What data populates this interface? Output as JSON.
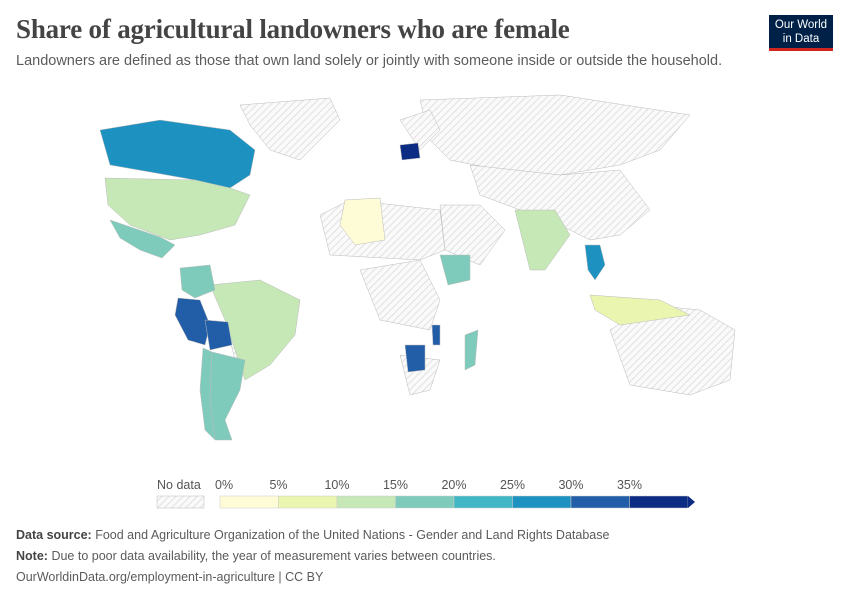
{
  "header": {
    "title": "Share of agricultural landowners who are female",
    "subtitle": "Landowners are defined as those that own land solely or jointly with someone inside or outside the household.",
    "logo": "Our World in Data"
  },
  "chart_data": {
    "type": "map",
    "title": "Share of agricultural landowners who are female",
    "legend": {
      "no_data_label": "No data",
      "ticks": [
        "0%",
        "5%",
        "10%",
        "15%",
        "20%",
        "25%",
        "30%",
        "35%"
      ],
      "bins": [
        {
          "min": 0,
          "max": 5,
          "color": "#fefcd6"
        },
        {
          "min": 5,
          "max": 10,
          "color": "#eaf5b0"
        },
        {
          "min": 10,
          "max": 15,
          "color": "#c6e8b7"
        },
        {
          "min": 15,
          "max": 20,
          "color": "#7ecbbb"
        },
        {
          "min": 20,
          "max": 25,
          "color": "#41b6c4"
        },
        {
          "min": 25,
          "max": 30,
          "color": "#1d91c0"
        },
        {
          "min": 30,
          "max": 35,
          "color": "#225ea8"
        },
        {
          "min": 35,
          "max": null,
          "color": "#0c2c84"
        }
      ],
      "no_data_color": "#e6e6e6"
    },
    "countries": [
      {
        "name": "Canada",
        "bin": "25-30%"
      },
      {
        "name": "United States",
        "bin": "10-15%"
      },
      {
        "name": "Mexico",
        "bin": "15-20%"
      },
      {
        "name": "Brazil",
        "bin": "10-15%"
      },
      {
        "name": "Peru",
        "bin": "30-35%"
      },
      {
        "name": "Bolivia",
        "bin": "30-35%"
      },
      {
        "name": "Argentina",
        "bin": "15-20%"
      },
      {
        "name": "Chile",
        "bin": "15-20%"
      },
      {
        "name": "Colombia",
        "bin": "15-20%"
      },
      {
        "name": "India",
        "bin": "10-15%"
      },
      {
        "name": "Thailand",
        "bin": "25-30%"
      },
      {
        "name": "Poland",
        "bin": "35%+"
      },
      {
        "name": "Algeria",
        "bin": "0-5%"
      },
      {
        "name": "Ethiopia",
        "bin": "15-20%"
      },
      {
        "name": "Malawi",
        "bin": "30-35%"
      },
      {
        "name": "Botswana",
        "bin": "30-35%"
      },
      {
        "name": "Madagascar",
        "bin": "15-20%"
      },
      {
        "name": "Indonesia",
        "bin": "5-10%"
      }
    ]
  },
  "footer": {
    "source_label": "Data source:",
    "source": "Food and Agriculture Organization of the United Nations - Gender and Land Rights Database",
    "note_label": "Note:",
    "note": "Due to poor data availability, the year of measurement varies between countries.",
    "url": "OurWorldinData.org/employment-in-agriculture | CC BY"
  }
}
